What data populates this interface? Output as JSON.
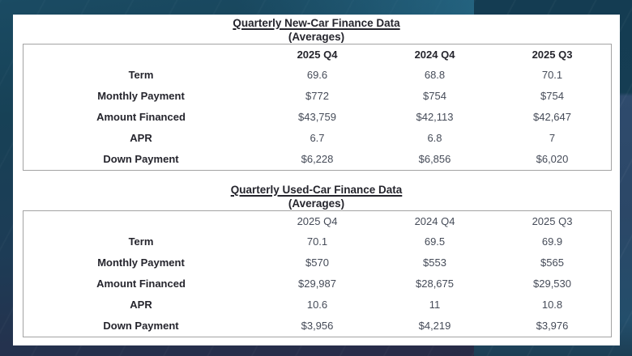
{
  "colors": {
    "panel_background": "#ffffff",
    "bold_text": "#25252d",
    "value_text": "#454b58",
    "table_border": "#a3a3a3",
    "background_teal": "#174156",
    "background_navy": "#272b45",
    "background_slate_blue": "#2f4b6d"
  },
  "chart_data": [
    {
      "type": "table",
      "title": "Quarterly New-Car Finance Data",
      "subtitle": "(Averages)",
      "header_bold": true,
      "columns": [
        "",
        "2025 Q4",
        "2024 Q4",
        "2025 Q3"
      ],
      "rows": [
        {
          "label": "Term",
          "values": [
            "69.6",
            "68.8",
            "70.1"
          ]
        },
        {
          "label": "Monthly Payment",
          "values": [
            "$772",
            "$754",
            "$754"
          ]
        },
        {
          "label": "Amount Financed",
          "values": [
            "$43,759",
            "$42,113",
            "$42,647"
          ]
        },
        {
          "label": "APR",
          "values": [
            "6.7",
            "6.8",
            "7"
          ]
        },
        {
          "label": "Down Payment",
          "values": [
            "$6,228",
            "$6,856",
            "$6,020"
          ]
        }
      ]
    },
    {
      "type": "table",
      "title": "Quarterly Used-Car Finance Data",
      "subtitle": "(Averages)",
      "header_bold": false,
      "columns": [
        "",
        "2025 Q4",
        "2024 Q4",
        "2025 Q3"
      ],
      "rows": [
        {
          "label": "Term",
          "values": [
            "70.1",
            "69.5",
            "69.9"
          ]
        },
        {
          "label": "Monthly Payment",
          "values": [
            "$570",
            "$553",
            "$565"
          ]
        },
        {
          "label": "Amount Financed",
          "values": [
            "$29,987",
            "$28,675",
            "$29,530"
          ]
        },
        {
          "label": "APR",
          "values": [
            "10.6",
            "11",
            "10.8"
          ]
        },
        {
          "label": "Down Payment",
          "values": [
            "$3,956",
            "$4,219",
            "$3,976"
          ]
        }
      ]
    }
  ]
}
